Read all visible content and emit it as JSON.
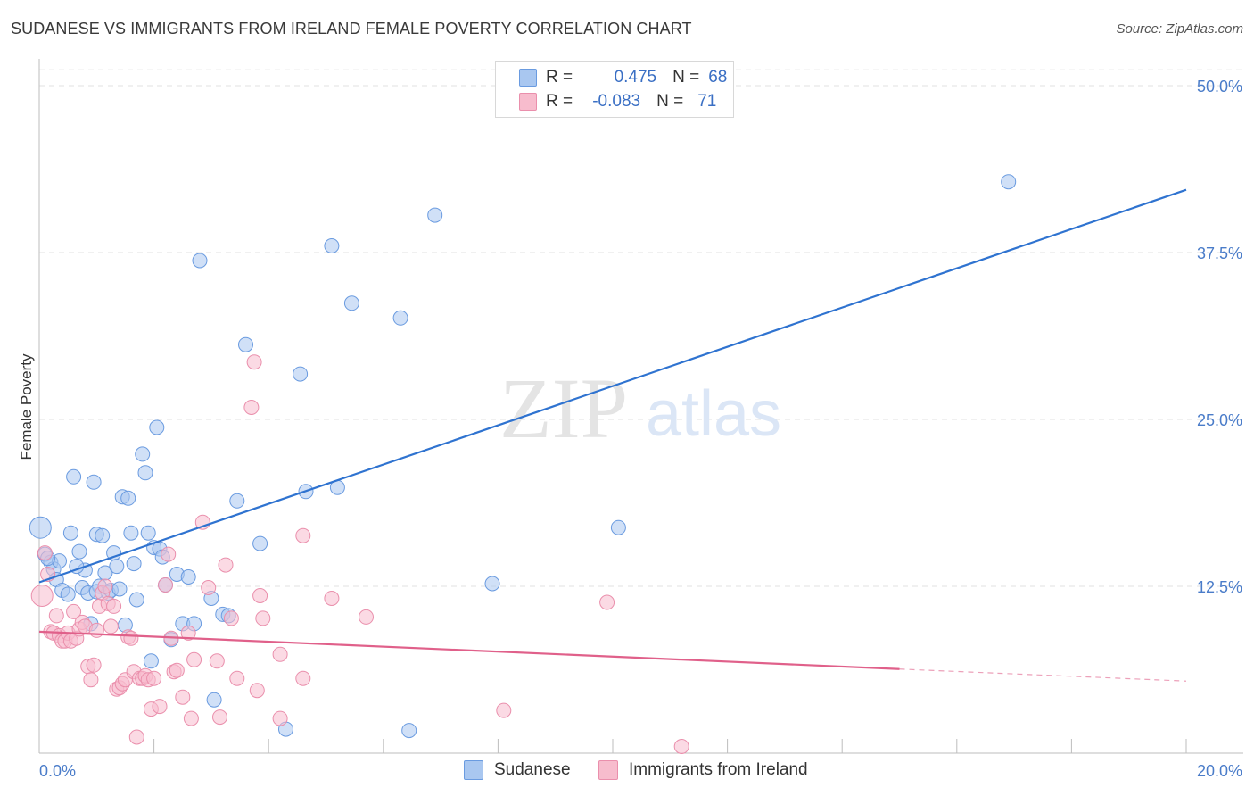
{
  "title": "SUDANESE VS IMMIGRANTS FROM IRELAND FEMALE POVERTY CORRELATION CHART",
  "source": "Source: ZipAtlas.com",
  "watermark": {
    "zip": "ZIP",
    "atlas": "atlas"
  },
  "legend": {
    "rows": [
      {
        "r_label": "R =",
        "r_value": "0.475",
        "n_label": "N =",
        "n_value": "68",
        "color": "#a9c7f0",
        "border": "#6a9be0"
      },
      {
        "r_label": "R =",
        "r_value": "-0.083",
        "n_label": "N =",
        "n_value": "71",
        "color": "#f7bccd",
        "border": "#ea8fac"
      }
    ]
  },
  "bottom_legend": [
    {
      "label": "Sudanese",
      "color": "#a9c7f0",
      "border": "#6a9be0"
    },
    {
      "label": "Immigrants from Ireland",
      "color": "#f7bccd",
      "border": "#ea8fac"
    }
  ],
  "chart_data": {
    "type": "scatter",
    "title": "SUDANESE VS IMMIGRANTS FROM IRELAND FEMALE POVERTY CORRELATION CHART",
    "xlabel": "",
    "ylabel": "Female Poverty",
    "xlim": [
      0,
      20
    ],
    "ylim": [
      0,
      50
    ],
    "x_ticks": [
      "0.0%",
      "20.0%"
    ],
    "y_ticks": [
      {
        "value": 12.5,
        "label": "12.5%"
      },
      {
        "value": 25,
        "label": "25.0%"
      },
      {
        "value": 37.5,
        "label": "37.5%"
      },
      {
        "value": 50,
        "label": "50.0%"
      }
    ],
    "grid": true,
    "legend_position": "top-center",
    "series": [
      {
        "name": "Sudanese",
        "color": "#a9c7f0",
        "edge": "#6a9be0",
        "trend": {
          "x0": 0,
          "y0": 12.8,
          "x1": 20,
          "y1": 42.2,
          "color": "#2f73d0"
        },
        "points": [
          [
            0.02,
            16.9
          ],
          [
            0.1,
            14.9
          ],
          [
            0.2,
            14.3
          ],
          [
            0.25,
            13.8
          ],
          [
            0.3,
            13.0
          ],
          [
            0.35,
            14.4
          ],
          [
            0.4,
            12.2
          ],
          [
            0.5,
            11.9
          ],
          [
            0.55,
            16.5
          ],
          [
            0.6,
            20.7
          ],
          [
            0.7,
            15.1
          ],
          [
            0.75,
            12.4
          ],
          [
            0.8,
            13.7
          ],
          [
            0.85,
            12.0
          ],
          [
            0.9,
            9.7
          ],
          [
            0.95,
            20.3
          ],
          [
            1.0,
            16.4
          ],
          [
            1.05,
            12.5
          ],
          [
            1.1,
            16.3
          ],
          [
            1.15,
            13.5
          ],
          [
            1.2,
            12.0
          ],
          [
            1.25,
            12.2
          ],
          [
            1.3,
            15.0
          ],
          [
            1.35,
            14.0
          ],
          [
            1.4,
            12.3
          ],
          [
            1.45,
            19.2
          ],
          [
            1.5,
            9.6
          ],
          [
            1.55,
            19.1
          ],
          [
            1.6,
            16.5
          ],
          [
            1.65,
            14.2
          ],
          [
            1.7,
            11.5
          ],
          [
            1.8,
            22.4
          ],
          [
            1.85,
            21.0
          ],
          [
            1.9,
            16.5
          ],
          [
            1.95,
            6.9
          ],
          [
            2.0,
            15.4
          ],
          [
            2.05,
            24.4
          ],
          [
            2.1,
            15.3
          ],
          [
            2.15,
            14.7
          ],
          [
            2.2,
            12.6
          ],
          [
            2.3,
            8.5
          ],
          [
            2.4,
            13.4
          ],
          [
            2.5,
            9.7
          ],
          [
            2.6,
            13.2
          ],
          [
            2.7,
            9.7
          ],
          [
            2.8,
            36.9
          ],
          [
            3.0,
            11.6
          ],
          [
            3.05,
            4.0
          ],
          [
            3.2,
            10.4
          ],
          [
            3.3,
            10.3
          ],
          [
            3.45,
            18.9
          ],
          [
            3.6,
            30.6
          ],
          [
            3.85,
            15.7
          ],
          [
            4.3,
            1.8
          ],
          [
            4.55,
            28.4
          ],
          [
            4.65,
            19.6
          ],
          [
            5.1,
            38.0
          ],
          [
            5.2,
            19.9
          ],
          [
            5.45,
            33.7
          ],
          [
            6.3,
            32.6
          ],
          [
            6.45,
            1.7
          ],
          [
            6.9,
            40.3
          ],
          [
            7.9,
            12.7
          ],
          [
            10.1,
            16.9
          ],
          [
            16.9,
            42.8
          ],
          [
            0.15,
            14.6
          ],
          [
            0.65,
            14.0
          ],
          [
            1.0,
            12.1
          ]
        ]
      },
      {
        "name": "Immigrants from Ireland",
        "color": "#f7bccd",
        "edge": "#ea8fac",
        "trend": {
          "x0": 0,
          "y0": 9.1,
          "x1": 15.0,
          "y1": 6.3,
          "dash_x1": 20,
          "dash_y1": 5.4,
          "color": "#e0608a"
        },
        "points": [
          [
            0.05,
            11.8
          ],
          [
            0.1,
            15.0
          ],
          [
            0.15,
            13.4
          ],
          [
            0.2,
            9.1
          ],
          [
            0.25,
            9.0
          ],
          [
            0.3,
            10.3
          ],
          [
            0.35,
            8.8
          ],
          [
            0.4,
            8.4
          ],
          [
            0.45,
            8.4
          ],
          [
            0.5,
            9.0
          ],
          [
            0.55,
            8.4
          ],
          [
            0.6,
            10.6
          ],
          [
            0.65,
            8.6
          ],
          [
            0.7,
            9.3
          ],
          [
            0.75,
            9.8
          ],
          [
            0.8,
            9.5
          ],
          [
            0.85,
            6.5
          ],
          [
            0.9,
            5.5
          ],
          [
            0.95,
            6.6
          ],
          [
            1.0,
            9.2
          ],
          [
            1.05,
            11.0
          ],
          [
            1.1,
            12.0
          ],
          [
            1.15,
            12.5
          ],
          [
            1.2,
            11.2
          ],
          [
            1.25,
            9.5
          ],
          [
            1.3,
            11.0
          ],
          [
            1.35,
            4.8
          ],
          [
            1.4,
            4.9
          ],
          [
            1.45,
            5.2
          ],
          [
            1.5,
            5.5
          ],
          [
            1.55,
            8.7
          ],
          [
            1.6,
            8.6
          ],
          [
            1.65,
            6.1
          ],
          [
            1.7,
            1.2
          ],
          [
            1.75,
            5.6
          ],
          [
            1.8,
            5.6
          ],
          [
            1.85,
            5.8
          ],
          [
            1.9,
            5.5
          ],
          [
            1.95,
            3.3
          ],
          [
            2.0,
            5.6
          ],
          [
            2.1,
            3.5
          ],
          [
            2.2,
            12.6
          ],
          [
            2.25,
            14.9
          ],
          [
            2.3,
            8.6
          ],
          [
            2.35,
            6.1
          ],
          [
            2.4,
            6.2
          ],
          [
            2.5,
            4.2
          ],
          [
            2.6,
            9.0
          ],
          [
            2.65,
            2.6
          ],
          [
            2.7,
            7.0
          ],
          [
            2.85,
            17.3
          ],
          [
            2.95,
            12.4
          ],
          [
            3.1,
            6.9
          ],
          [
            3.15,
            2.7
          ],
          [
            3.25,
            14.1
          ],
          [
            3.35,
            10.1
          ],
          [
            3.45,
            5.6
          ],
          [
            3.7,
            25.9
          ],
          [
            3.75,
            29.3
          ],
          [
            3.8,
            4.7
          ],
          [
            3.9,
            10.1
          ],
          [
            4.2,
            2.6
          ],
          [
            4.2,
            7.4
          ],
          [
            4.6,
            16.3
          ],
          [
            4.6,
            5.6
          ],
          [
            5.1,
            11.6
          ],
          [
            5.7,
            10.2
          ],
          [
            8.1,
            3.2
          ],
          [
            9.9,
            11.3
          ],
          [
            11.2,
            0.5
          ],
          [
            3.85,
            11.8
          ]
        ]
      }
    ]
  }
}
